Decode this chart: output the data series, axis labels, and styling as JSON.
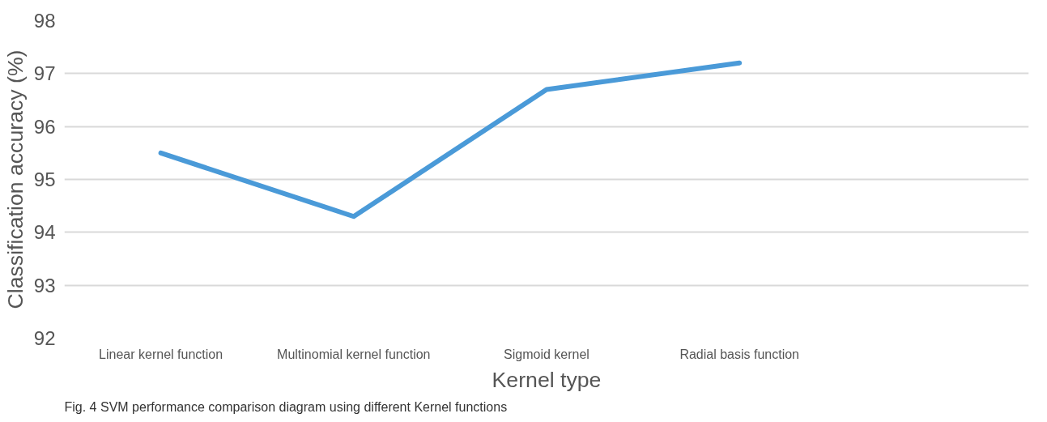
{
  "chart_data": {
    "type": "line",
    "xlabel": "Kernel type",
    "ylabel": "Classification accuracy (%)",
    "categories": [
      "Linear kernel function",
      "Multinomial kernel function",
      "Sigmoid kernel",
      "Radial basis function",
      null
    ],
    "series": [
      {
        "color": "#4a9ad8",
        "values": [
          95.5,
          94.3,
          96.7,
          97.2,
          null
        ]
      }
    ],
    "ylim": [
      92,
      98
    ],
    "yticks": [
      92,
      93,
      94,
      95,
      96,
      97,
      98
    ],
    "grid": "y",
    "marker": "none",
    "line_style": "solid",
    "annotations": [
      "Fig. 4 SVM performance comparison diagram using different Kernel functions"
    ]
  }
}
